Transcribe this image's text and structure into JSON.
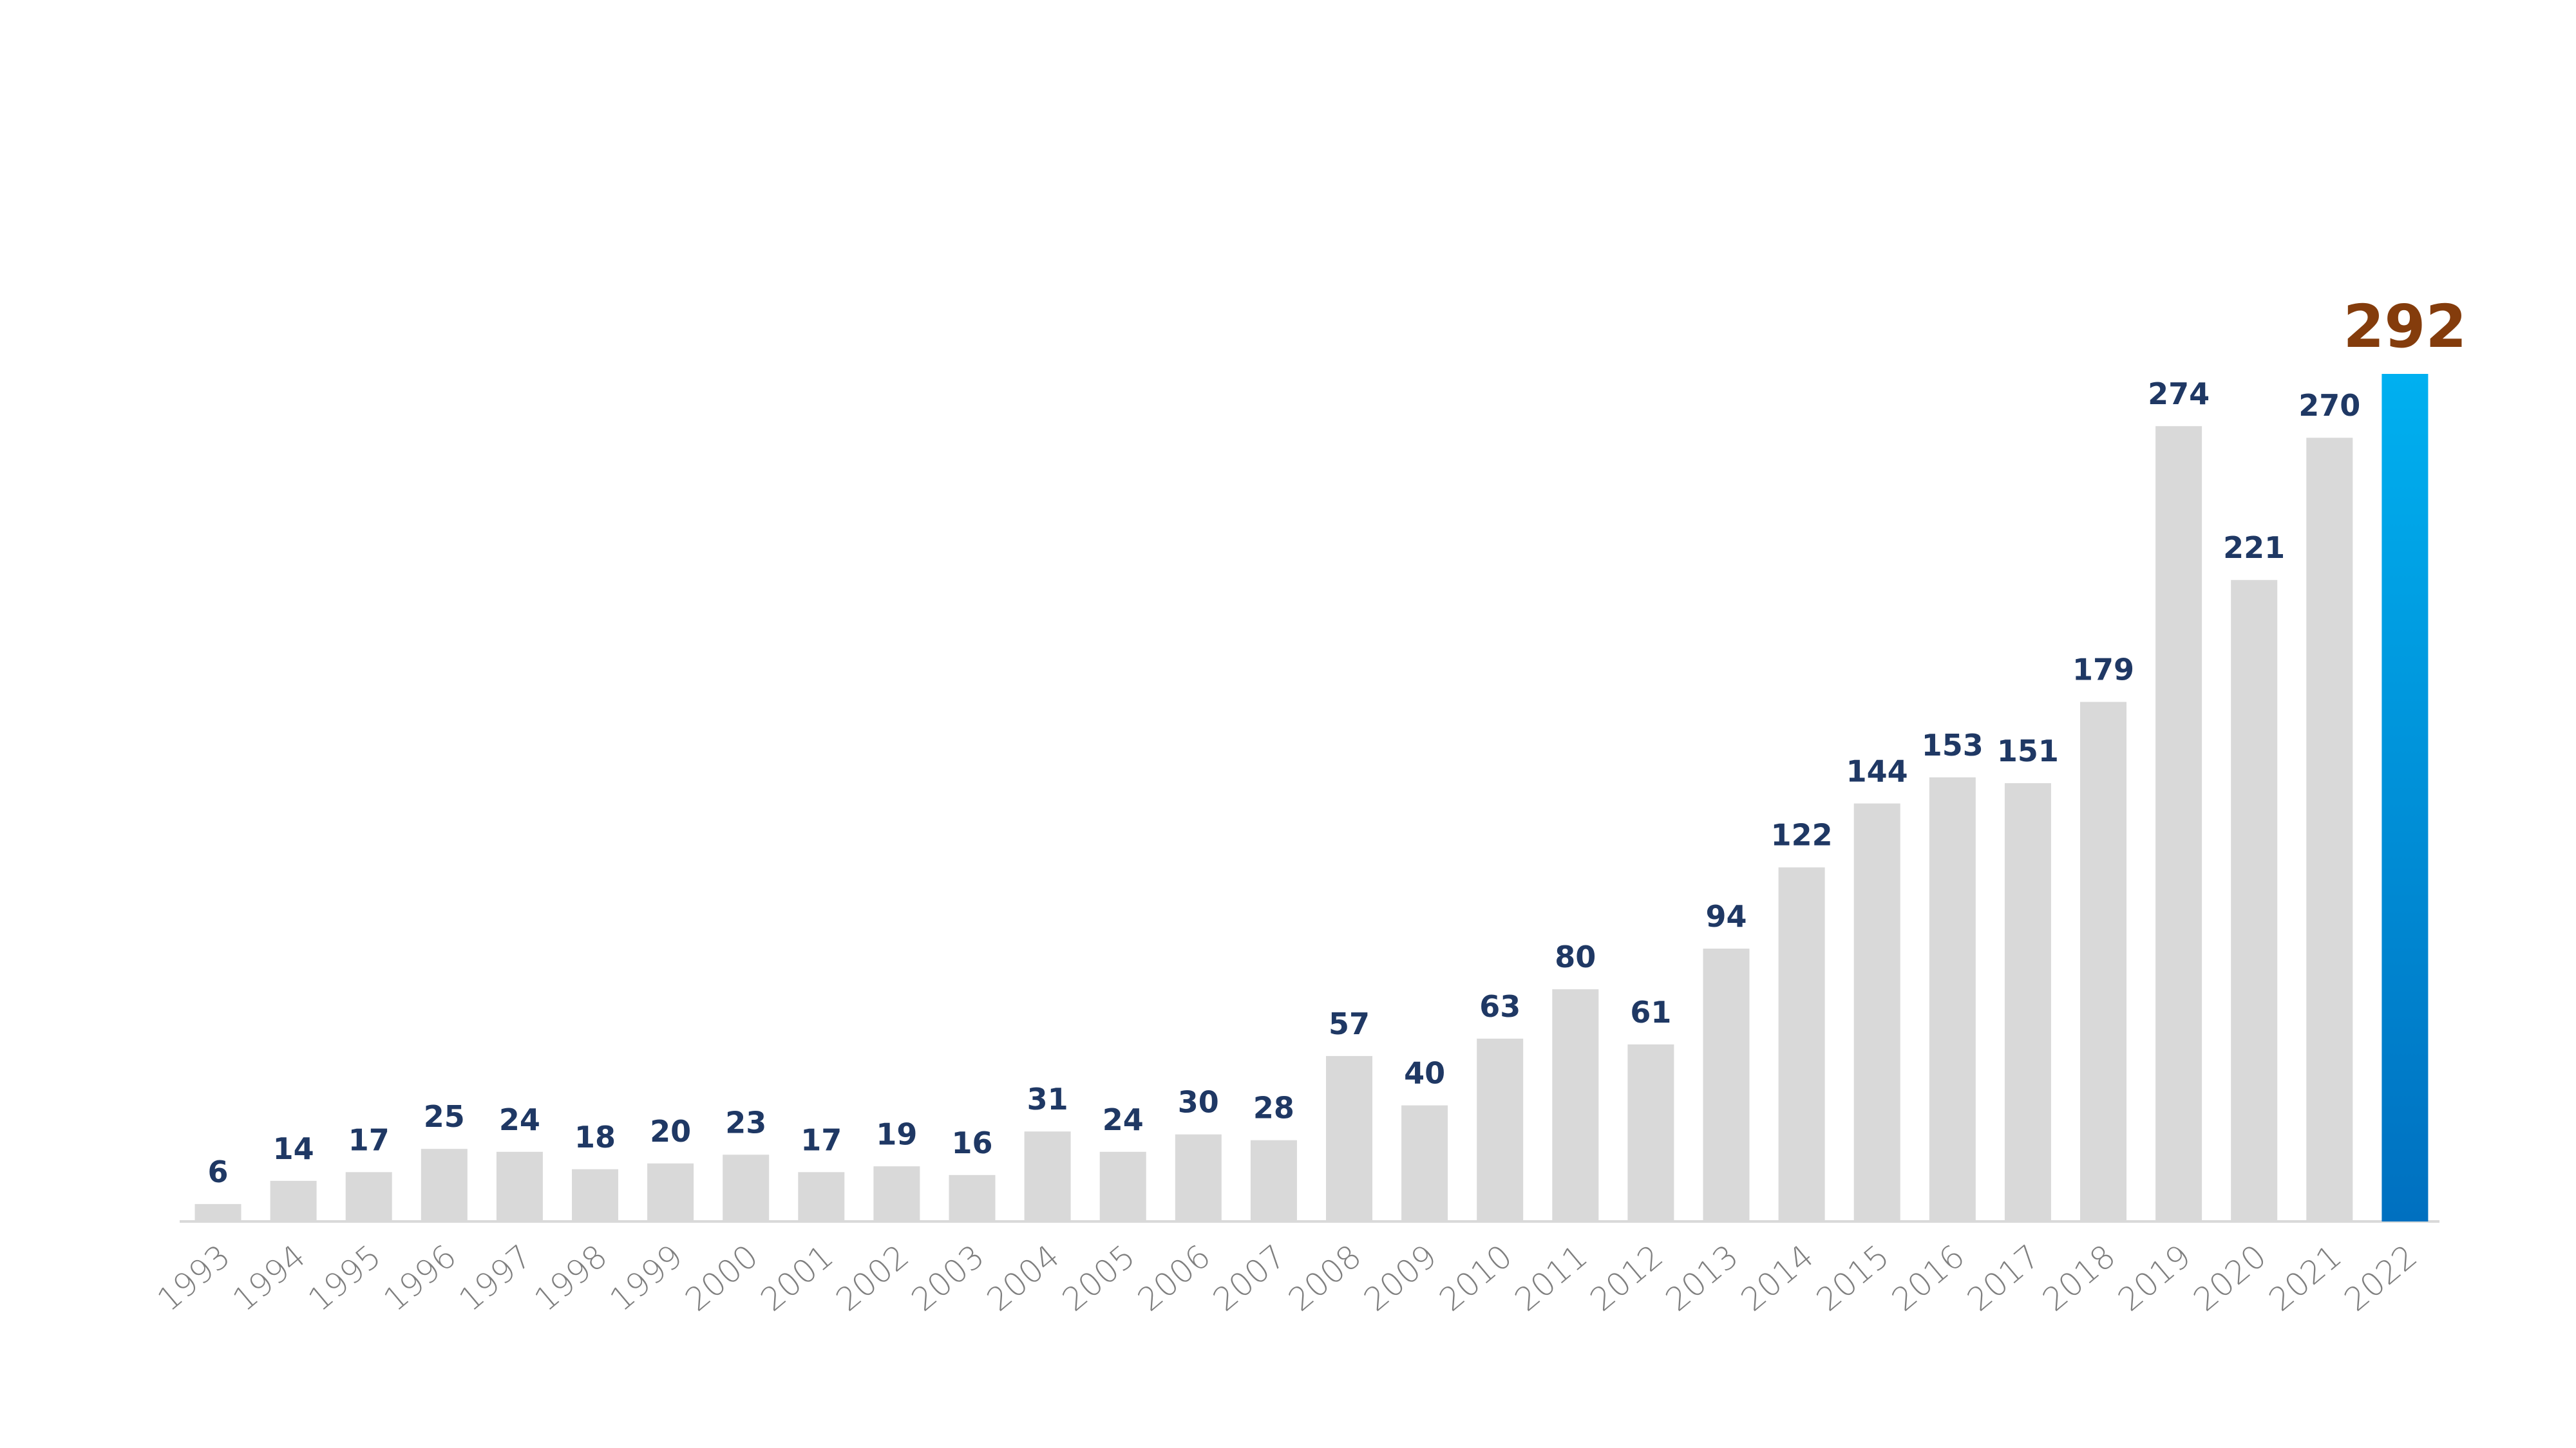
{
  "chart_data": {
    "type": "bar",
    "categories": [
      "1993",
      "1994",
      "1995",
      "1996",
      "1997",
      "1998",
      "1999",
      "2000",
      "2001",
      "2002",
      "2003",
      "2004",
      "2005",
      "2006",
      "2007",
      "2008",
      "2009",
      "2010",
      "2011",
      "2012",
      "2013",
      "2014",
      "2015",
      "2016",
      "2017",
      "2018",
      "2019",
      "2020",
      "2021",
      "2022"
    ],
    "values": [
      6,
      14,
      17,
      25,
      24,
      18,
      20,
      23,
      17,
      19,
      16,
      31,
      24,
      30,
      28,
      57,
      40,
      63,
      80,
      61,
      94,
      122,
      144,
      153,
      151,
      179,
      274,
      221,
      270,
      292
    ],
    "colors": [
      "#d9d9d9",
      "#d9d9d9",
      "#d9d9d9",
      "#d9d9d9",
      "#d9d9d9",
      "#d9d9d9",
      "#d9d9d9",
      "#d9d9d9",
      "#d9d9d9",
      "#d9d9d9",
      "#d9d9d9",
      "#d9d9d9",
      "#d9d9d9",
      "#d9d9d9",
      "#d9d9d9",
      "#d9d9d9",
      "#d9d9d9",
      "#d9d9d9",
      "#d9d9d9",
      "#d9d9d9",
      "#d9d9d9",
      "#d9d9d9",
      "#d9d9d9",
      "#d9d9d9",
      "#d9d9d9",
      "#d9d9d9",
      "#d9d9d9",
      "#d9d9d9",
      "#d9d9d9",
      "#0a8fd9"
    ],
    "label_colors": [
      "#1f3864",
      "#1f3864",
      "#1f3864",
      "#1f3864",
      "#1f3864",
      "#1f3864",
      "#1f3864",
      "#1f3864",
      "#1f3864",
      "#1f3864",
      "#1f3864",
      "#1f3864",
      "#1f3864",
      "#1f3864",
      "#1f3864",
      "#1f3864",
      "#1f3864",
      "#1f3864",
      "#1f3864",
      "#1f3864",
      "#1f3864",
      "#1f3864",
      "#1f3864",
      "#1f3864",
      "#1f3864",
      "#1f3864",
      "#1f3864",
      "#1f3864",
      "#1f3864",
      "#843c0c"
    ]
  }
}
